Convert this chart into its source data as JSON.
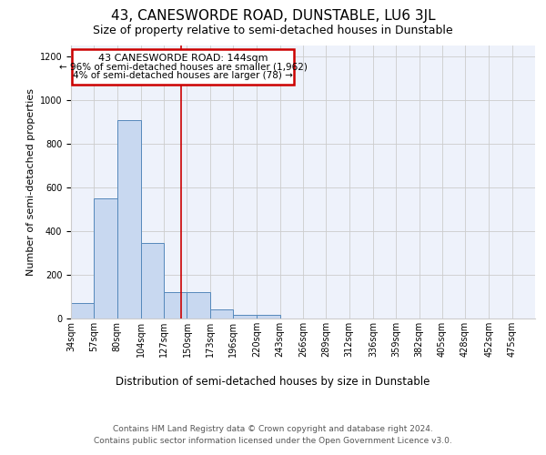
{
  "title": "43, CANESWORDE ROAD, DUNSTABLE, LU6 3JL",
  "subtitle": "Size of property relative to semi-detached houses in Dunstable",
  "xlabel": "Distribution of semi-detached houses by size in Dunstable",
  "ylabel": "Number of semi-detached properties",
  "footer_line1": "Contains HM Land Registry data © Crown copyright and database right 2024.",
  "footer_line2": "Contains public sector information licensed under the Open Government Licence v3.0.",
  "annotation_line1": "43 CANESWORDE ROAD: 144sqm",
  "annotation_line2": "← 96% of semi-detached houses are smaller (1,962)",
  "annotation_line3": "4% of semi-detached houses are larger (78) →",
  "property_size": 144,
  "bar_edges": [
    34,
    57,
    80,
    104,
    127,
    150,
    173,
    196,
    220,
    243,
    266,
    289,
    312,
    336,
    359,
    382,
    405,
    428,
    452,
    475,
    498
  ],
  "bar_heights": [
    70,
    550,
    910,
    345,
    120,
    120,
    40,
    15,
    15,
    0,
    0,
    0,
    0,
    0,
    0,
    0,
    0,
    0,
    0,
    0
  ],
  "bar_color": "#c8d8f0",
  "bar_edge_color": "#5588bb",
  "vline_color": "#cc0000",
  "vline_x": 144,
  "annotation_box_color": "#cc0000",
  "ylim": [
    0,
    1250
  ],
  "yticks": [
    0,
    200,
    400,
    600,
    800,
    1000,
    1200
  ],
  "bg_color": "#eef2fb",
  "grid_color": "#cccccc",
  "title_fontsize": 11,
  "subtitle_fontsize": 9,
  "axis_label_fontsize": 8,
  "tick_label_fontsize": 7,
  "footer_fontsize": 6.5
}
